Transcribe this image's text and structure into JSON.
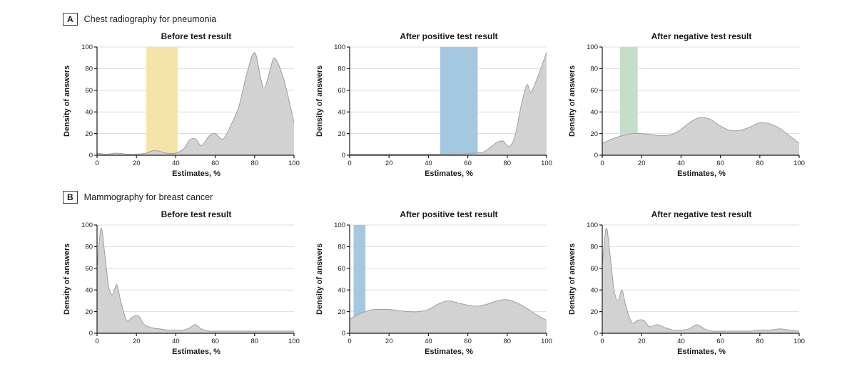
{
  "styles": {
    "area_fill": "#d2d2d2",
    "area_stroke": "#9e9e9e",
    "gridline": "#dcdcdc",
    "axis": "#1a1a1a",
    "band_yellow": "#f5e3a9",
    "band_blue": "#a5c8e1",
    "band_green": "#c5dec9"
  },
  "sections": [
    {
      "label": "A",
      "title": "Chest radiography for pneumonia"
    },
    {
      "label": "B",
      "title": "Mammography for breast cancer"
    }
  ],
  "chart_data": [
    {
      "type": "area",
      "panel": "A",
      "title": "Before test result",
      "xlabel": "Estimates, %",
      "ylabel": "Density of answers",
      "xlim": [
        0,
        100
      ],
      "ylim": [
        0,
        100
      ],
      "xticks": [
        0,
        20,
        40,
        60,
        80,
        100
      ],
      "yticks": [
        0,
        20,
        40,
        60,
        80,
        100
      ],
      "band": {
        "x0": 25,
        "x1": 41,
        "color": "#f5e3a9"
      },
      "x": [
        0,
        5,
        10,
        15,
        20,
        25,
        28,
        31,
        35,
        40,
        44,
        47,
        50,
        53,
        57,
        60,
        64,
        68,
        72,
        76,
        80,
        83,
        85,
        88,
        90,
        93,
        96,
        100
      ],
      "y": [
        2,
        1,
        2,
        1,
        1,
        2,
        4,
        4,
        2,
        2,
        6,
        14,
        15,
        9,
        18,
        20,
        15,
        28,
        45,
        75,
        95,
        72,
        62,
        80,
        90,
        80,
        62,
        30
      ]
    },
    {
      "type": "area",
      "panel": "A",
      "title": "After positive test result",
      "xlabel": "Estimates, %",
      "ylabel": "Density of answers",
      "xlim": [
        0,
        100
      ],
      "ylim": [
        0,
        100
      ],
      "xticks": [
        0,
        20,
        40,
        60,
        80,
        100
      ],
      "yticks": [
        0,
        20,
        40,
        60,
        80,
        100
      ],
      "band": {
        "x0": 46,
        "x1": 65,
        "color": "#a5c8e1"
      },
      "x": [
        0,
        10,
        20,
        30,
        40,
        50,
        58,
        64,
        68,
        72,
        75,
        78,
        81,
        84,
        87,
        90,
        92,
        95,
        100
      ],
      "y": [
        1,
        1,
        1,
        1,
        1,
        1,
        1,
        2,
        3,
        8,
        12,
        13,
        8,
        18,
        45,
        65,
        58,
        70,
        95
      ]
    },
    {
      "type": "area",
      "panel": "A",
      "title": "After negative test result",
      "xlabel": "Estimates, %",
      "ylabel": "Density of answers",
      "xlim": [
        0,
        100
      ],
      "ylim": [
        0,
        100
      ],
      "xticks": [
        0,
        20,
        40,
        60,
        80,
        100
      ],
      "yticks": [
        0,
        20,
        40,
        60,
        80,
        100
      ],
      "band": {
        "x0": 9,
        "x1": 18,
        "color": "#c5dec9"
      },
      "x": [
        0,
        5,
        10,
        15,
        20,
        25,
        30,
        35,
        40,
        45,
        50,
        55,
        60,
        65,
        70,
        75,
        80,
        85,
        90,
        95,
        100
      ],
      "y": [
        11,
        15,
        18,
        20,
        20,
        19,
        18,
        19,
        24,
        31,
        35,
        33,
        27,
        23,
        23,
        26,
        30,
        29,
        25,
        18,
        11
      ]
    },
    {
      "type": "area",
      "panel": "B",
      "title": "Before test result",
      "xlabel": "Estimates, %",
      "ylabel": "Density of answers",
      "xlim": [
        0,
        100
      ],
      "ylim": [
        0,
        100
      ],
      "xticks": [
        0,
        20,
        40,
        60,
        80,
        100
      ],
      "yticks": [
        0,
        20,
        40,
        60,
        80,
        100
      ],
      "band": null,
      "x": [
        0,
        2,
        4,
        6,
        8,
        10,
        12,
        15,
        18,
        21,
        24,
        28,
        32,
        36,
        40,
        44,
        47,
        50,
        53,
        57,
        60,
        65,
        70,
        80,
        90,
        100
      ],
      "y": [
        60,
        97,
        72,
        42,
        36,
        45,
        30,
        12,
        15,
        16,
        8,
        5,
        4,
        3,
        3,
        3,
        5,
        8,
        4,
        2,
        2,
        2,
        2,
        2,
        2,
        2
      ]
    },
    {
      "type": "area",
      "panel": "B",
      "title": "After positive test result",
      "xlabel": "Estimates, %",
      "ylabel": "Density of answers",
      "xlim": [
        0,
        100
      ],
      "ylim": [
        0,
        100
      ],
      "xticks": [
        0,
        20,
        40,
        60,
        80,
        100
      ],
      "yticks": [
        0,
        20,
        40,
        60,
        80,
        100
      ],
      "band": {
        "x0": 2,
        "x1": 8,
        "color": "#a5c8e1"
      },
      "x": [
        0,
        4,
        8,
        12,
        16,
        20,
        25,
        30,
        35,
        40,
        45,
        50,
        55,
        60,
        65,
        70,
        75,
        80,
        85,
        90,
        95,
        100
      ],
      "y": [
        13,
        17,
        20,
        22,
        22,
        22,
        21,
        20,
        20,
        22,
        27,
        30,
        28,
        26,
        25,
        27,
        30,
        31,
        28,
        23,
        17,
        12
      ]
    },
    {
      "type": "area",
      "panel": "B",
      "title": "After negative test result",
      "xlabel": "Estimates, %",
      "ylabel": "Density of answers",
      "xlim": [
        0,
        100
      ],
      "ylim": [
        0,
        100
      ],
      "xticks": [
        0,
        20,
        40,
        60,
        80,
        100
      ],
      "yticks": [
        0,
        20,
        40,
        60,
        80,
        100
      ],
      "band": null,
      "x": [
        0,
        2,
        4,
        6,
        8,
        10,
        12,
        15,
        18,
        21,
        24,
        28,
        32,
        36,
        40,
        44,
        48,
        52,
        56,
        60,
        65,
        70,
        75,
        80,
        85,
        90,
        95,
        100
      ],
      "y": [
        62,
        97,
        72,
        40,
        30,
        40,
        25,
        10,
        12,
        12,
        6,
        8,
        5,
        3,
        3,
        4,
        8,
        4,
        2,
        2,
        2,
        2,
        2,
        3,
        3,
        4,
        3,
        2
      ]
    }
  ]
}
